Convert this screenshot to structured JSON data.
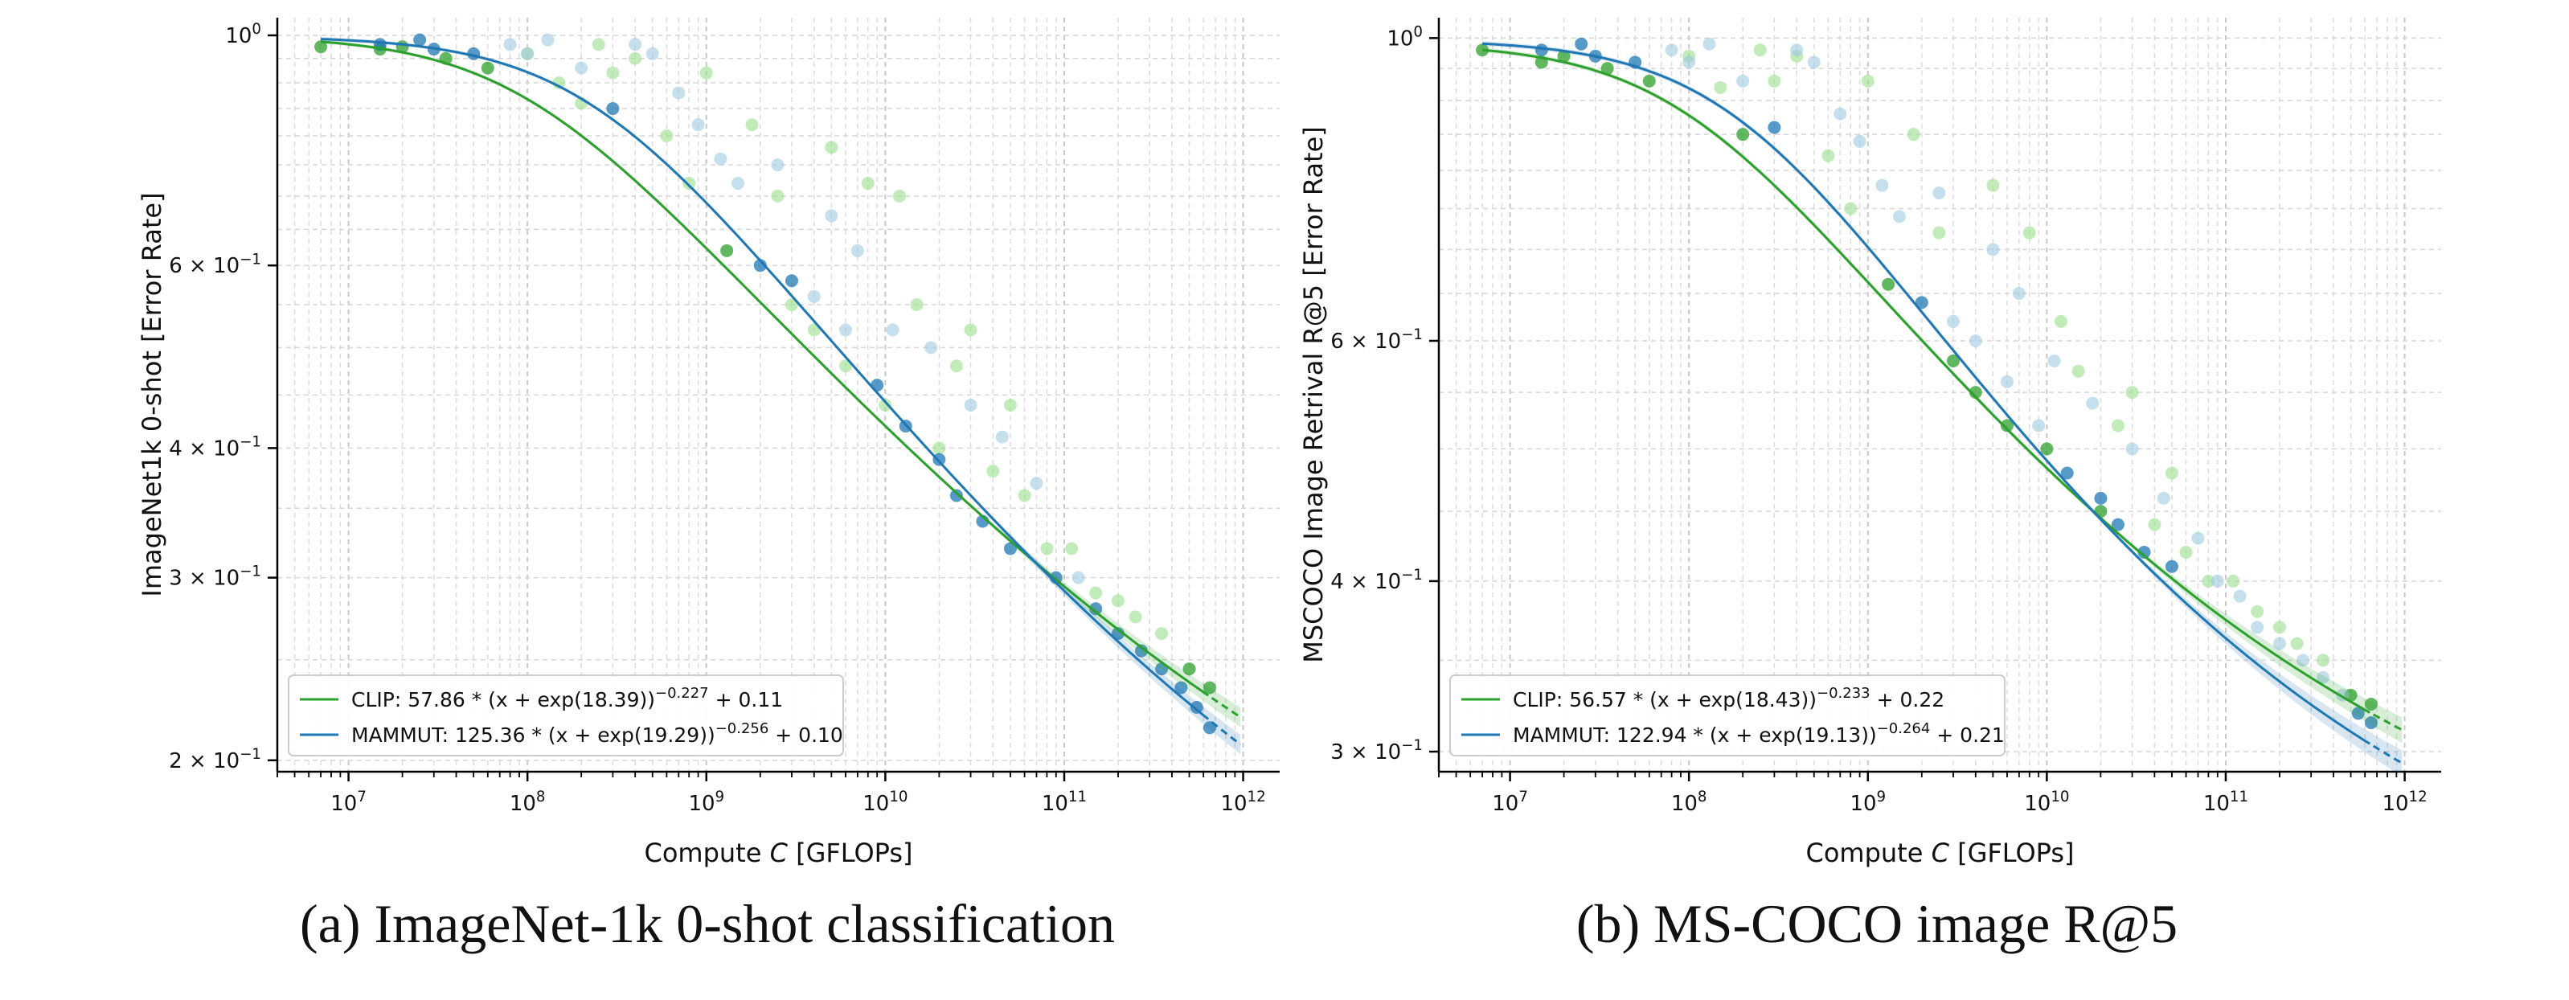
{
  "captions": {
    "a": "(a) ImageNet-1k 0-shot classification",
    "b": "(b) MS-COCO image R@5"
  },
  "colors": {
    "clip": "#2ca02c",
    "mammut": "#1f77b4",
    "clip_light": "#98df8a",
    "mammut_light": "#9ecae1"
  },
  "chart_data": [
    {
      "type": "scatter",
      "xlabel": "Compute C [GFLOPs]",
      "ylabel": "ImageNet1k 0-shot [Error Rate]",
      "x_scale": "log",
      "y_scale": "log",
      "xlim": [
        4000000.0,
        1600000000000.0
      ],
      "ylim": [
        0.195,
        1.04
      ],
      "x_ticks": [
        10000000.0,
        100000000.0,
        1000000000.0,
        10000000000.0,
        100000000000.0,
        1000000000000.0
      ],
      "x_tick_labels": [
        [
          "10",
          "7"
        ],
        [
          "10",
          "8"
        ],
        [
          "10",
          "9"
        ],
        [
          "10",
          "10"
        ],
        [
          "10",
          "11"
        ],
        [
          "10",
          "12"
        ]
      ],
      "y_ticks": [
        0.2,
        0.3,
        0.4,
        0.6,
        1.0
      ],
      "y_tick_labels": [
        [
          "2 × 10",
          "−1"
        ],
        [
          "3 × 10",
          "−1"
        ],
        [
          "4 × 10",
          "−1"
        ],
        [
          "6 × 10",
          "−1"
        ],
        [
          "10",
          "0"
        ]
      ],
      "grid": true,
      "legend_position": "lower-left",
      "series": [
        {
          "name": "CLIP",
          "fit": {
            "a": 57.86,
            "b": 18.39,
            "alpha": 0.227,
            "e": 0.11
          },
          "legend": [
            "CLIP: 57.86 * (x + exp(18.39))",
            "−0.227",
            " + 0.11"
          ],
          "points": [
            [
              7000000.0,
              0.975
            ],
            [
              15000000.0,
              0.97
            ],
            [
              20000000.0,
              0.975
            ],
            [
              35000000.0,
              0.95
            ],
            [
              60000000.0,
              0.93
            ],
            [
              100000000.0,
              0.96
            ],
            [
              150000000.0,
              0.9
            ],
            [
              200000000.0,
              0.86
            ],
            [
              250000000.0,
              0.98
            ],
            [
              300000000.0,
              0.92
            ],
            [
              400000000.0,
              0.95
            ],
            [
              600000000.0,
              0.8
            ],
            [
              800000000.0,
              0.72
            ],
            [
              1000000000.0,
              0.92
            ],
            [
              1300000000.0,
              0.62
            ],
            [
              1800000000.0,
              0.82
            ],
            [
              2500000000.0,
              0.7
            ],
            [
              3000000000.0,
              0.55
            ],
            [
              4000000000.0,
              0.52
            ],
            [
              5000000000.0,
              0.78
            ],
            [
              6000000000.0,
              0.48
            ],
            [
              8000000000.0,
              0.72
            ],
            [
              10000000000.0,
              0.44
            ],
            [
              12000000000.0,
              0.7
            ],
            [
              15000000000.0,
              0.55
            ],
            [
              20000000000.0,
              0.4
            ],
            [
              25000000000.0,
              0.48
            ],
            [
              30000000000.0,
              0.52
            ],
            [
              40000000000.0,
              0.38
            ],
            [
              50000000000.0,
              0.44
            ],
            [
              60000000000.0,
              0.36
            ],
            [
              80000000000.0,
              0.32
            ],
            [
              110000000000.0,
              0.32
            ],
            [
              150000000000.0,
              0.29
            ],
            [
              200000000000.0,
              0.285
            ],
            [
              250000000000.0,
              0.275
            ],
            [
              350000000000.0,
              0.265
            ],
            [
              500000000000.0,
              0.245
            ],
            [
              650000000000.0,
              0.235
            ]
          ]
        },
        {
          "name": "MAMMUT",
          "fit": {
            "a": 125.36,
            "b": 19.29,
            "alpha": 0.256,
            "e": 0.1
          },
          "legend": [
            "MAMMUT: 125.36 * (x + exp(19.29))",
            "−0.256",
            " + 0.10"
          ],
          "points": [
            [
              15000000.0,
              0.98
            ],
            [
              25000000.0,
              0.99
            ],
            [
              30000000.0,
              0.97
            ],
            [
              50000000.0,
              0.96
            ],
            [
              80000000.0,
              0.98
            ],
            [
              100000000.0,
              0.96
            ],
            [
              130000000.0,
              0.99
            ],
            [
              200000000.0,
              0.93
            ],
            [
              300000000.0,
              0.85
            ],
            [
              400000000.0,
              0.98
            ],
            [
              500000000.0,
              0.96
            ],
            [
              700000000.0,
              0.88
            ],
            [
              900000000.0,
              0.82
            ],
            [
              1200000000.0,
              0.76
            ],
            [
              1500000000.0,
              0.72
            ],
            [
              2000000000.0,
              0.6
            ],
            [
              2500000000.0,
              0.75
            ],
            [
              3000000000.0,
              0.58
            ],
            [
              4000000000.0,
              0.56
            ],
            [
              5000000000.0,
              0.67
            ],
            [
              6000000000.0,
              0.52
            ],
            [
              7000000000.0,
              0.62
            ],
            [
              9000000000.0,
              0.46
            ],
            [
              11000000000.0,
              0.52
            ],
            [
              13000000000.0,
              0.42
            ],
            [
              18000000000.0,
              0.5
            ],
            [
              20000000000.0,
              0.39
            ],
            [
              25000000000.0,
              0.36
            ],
            [
              30000000000.0,
              0.44
            ],
            [
              35000000000.0,
              0.34
            ],
            [
              45000000000.0,
              0.41
            ],
            [
              50000000000.0,
              0.32
            ],
            [
              70000000000.0,
              0.37
            ],
            [
              90000000000.0,
              0.3
            ],
            [
              120000000000.0,
              0.3
            ],
            [
              150000000000.0,
              0.28
            ],
            [
              200000000000.0,
              0.265
            ],
            [
              270000000000.0,
              0.255
            ],
            [
              350000000000.0,
              0.245
            ],
            [
              450000000000.0,
              0.235
            ],
            [
              550000000000.0,
              0.225
            ],
            [
              650000000000.0,
              0.215
            ]
          ]
        }
      ]
    },
    {
      "type": "scatter",
      "xlabel": "Compute C [GFLOPs]",
      "ylabel": "MSCOCO Image Retrival R@5 [Error Rate]",
      "x_scale": "log",
      "y_scale": "log",
      "xlim": [
        4000000.0,
        1600000000000.0
      ],
      "ylim": [
        0.29,
        1.035
      ],
      "x_ticks": [
        10000000.0,
        100000000.0,
        1000000000.0,
        10000000000.0,
        100000000000.0,
        1000000000000.0
      ],
      "x_tick_labels": [
        [
          "10",
          "7"
        ],
        [
          "10",
          "8"
        ],
        [
          "10",
          "9"
        ],
        [
          "10",
          "10"
        ],
        [
          "10",
          "11"
        ],
        [
          "10",
          "12"
        ]
      ],
      "y_ticks": [
        0.3,
        0.4,
        0.6,
        1.0
      ],
      "y_tick_labels": [
        [
          "3 × 10",
          "−1"
        ],
        [
          "4 × 10",
          "−1"
        ],
        [
          "6 × 10",
          "−1"
        ],
        [
          "10",
          "0"
        ]
      ],
      "grid": true,
      "legend_position": "lower-left",
      "series": [
        {
          "name": "CLIP",
          "fit": {
            "a": 56.57,
            "b": 18.43,
            "alpha": 0.233,
            "e": 0.22
          },
          "legend": [
            "CLIP: 56.57 * (x + exp(18.43))",
            "−0.233",
            " + 0.22"
          ],
          "points": [
            [
              7000000.0,
              0.98
            ],
            [
              15000000.0,
              0.96
            ],
            [
              20000000.0,
              0.97
            ],
            [
              35000000.0,
              0.95
            ],
            [
              60000000.0,
              0.93
            ],
            [
              100000000.0,
              0.97
            ],
            [
              150000000.0,
              0.92
            ],
            [
              200000000.0,
              0.85
            ],
            [
              250000000.0,
              0.98
            ],
            [
              300000000.0,
              0.93
            ],
            [
              400000000.0,
              0.97
            ],
            [
              600000000.0,
              0.82
            ],
            [
              800000000.0,
              0.75
            ],
            [
              1000000000.0,
              0.93
            ],
            [
              1300000000.0,
              0.66
            ],
            [
              1800000000.0,
              0.85
            ],
            [
              2500000000.0,
              0.72
            ],
            [
              3000000000.0,
              0.58
            ],
            [
              4000000000.0,
              0.55
            ],
            [
              5000000000.0,
              0.78
            ],
            [
              6000000000.0,
              0.52
            ],
            [
              8000000000.0,
              0.72
            ],
            [
              10000000000.0,
              0.5
            ],
            [
              12000000000.0,
              0.62
            ],
            [
              15000000000.0,
              0.57
            ],
            [
              20000000000.0,
              0.45
            ],
            [
              25000000000.0,
              0.52
            ],
            [
              30000000000.0,
              0.55
            ],
            [
              40000000000.0,
              0.44
            ],
            [
              50000000000.0,
              0.48
            ],
            [
              60000000000.0,
              0.42
            ],
            [
              80000000000.0,
              0.4
            ],
            [
              110000000000.0,
              0.4
            ],
            [
              150000000000.0,
              0.38
            ],
            [
              200000000000.0,
              0.37
            ],
            [
              250000000000.0,
              0.36
            ],
            [
              350000000000.0,
              0.35
            ],
            [
              500000000000.0,
              0.33
            ],
            [
              650000000000.0,
              0.325
            ]
          ]
        },
        {
          "name": "MAMMUT",
          "fit": {
            "a": 122.94,
            "b": 19.13,
            "alpha": 0.264,
            "e": 0.21
          },
          "legend": [
            "MAMMUT: 122.94 * (x + exp(19.13))",
            "−0.264",
            " + 0.21"
          ],
          "points": [
            [
              15000000.0,
              0.98
            ],
            [
              25000000.0,
              0.99
            ],
            [
              30000000.0,
              0.97
            ],
            [
              50000000.0,
              0.96
            ],
            [
              80000000.0,
              0.98
            ],
            [
              100000000.0,
              0.96
            ],
            [
              130000000.0,
              0.99
            ],
            [
              200000000.0,
              0.93
            ],
            [
              300000000.0,
              0.86
            ],
            [
              400000000.0,
              0.98
            ],
            [
              500000000.0,
              0.96
            ],
            [
              700000000.0,
              0.88
            ],
            [
              900000000.0,
              0.84
            ],
            [
              1200000000.0,
              0.78
            ],
            [
              1500000000.0,
              0.74
            ],
            [
              2000000000.0,
              0.64
            ],
            [
              2500000000.0,
              0.77
            ],
            [
              3000000000.0,
              0.62
            ],
            [
              4000000000.0,
              0.6
            ],
            [
              5000000000.0,
              0.7
            ],
            [
              6000000000.0,
              0.56
            ],
            [
              7000000000.0,
              0.65
            ],
            [
              9000000000.0,
              0.52
            ],
            [
              11000000000.0,
              0.58
            ],
            [
              13000000000.0,
              0.48
            ],
            [
              18000000000.0,
              0.54
            ],
            [
              20000000000.0,
              0.46
            ],
            [
              25000000000.0,
              0.44
            ],
            [
              30000000000.0,
              0.5
            ],
            [
              35000000000.0,
              0.42
            ],
            [
              45000000000.0,
              0.46
            ],
            [
              50000000000.0,
              0.41
            ],
            [
              70000000000.0,
              0.43
            ],
            [
              90000000000.0,
              0.4
            ],
            [
              120000000000.0,
              0.39
            ],
            [
              150000000000.0,
              0.37
            ],
            [
              200000000000.0,
              0.36
            ],
            [
              270000000000.0,
              0.35
            ],
            [
              350000000000.0,
              0.34
            ],
            [
              450000000000.0,
              0.33
            ],
            [
              550000000000.0,
              0.32
            ],
            [
              650000000000.0,
              0.315
            ]
          ]
        }
      ]
    }
  ]
}
